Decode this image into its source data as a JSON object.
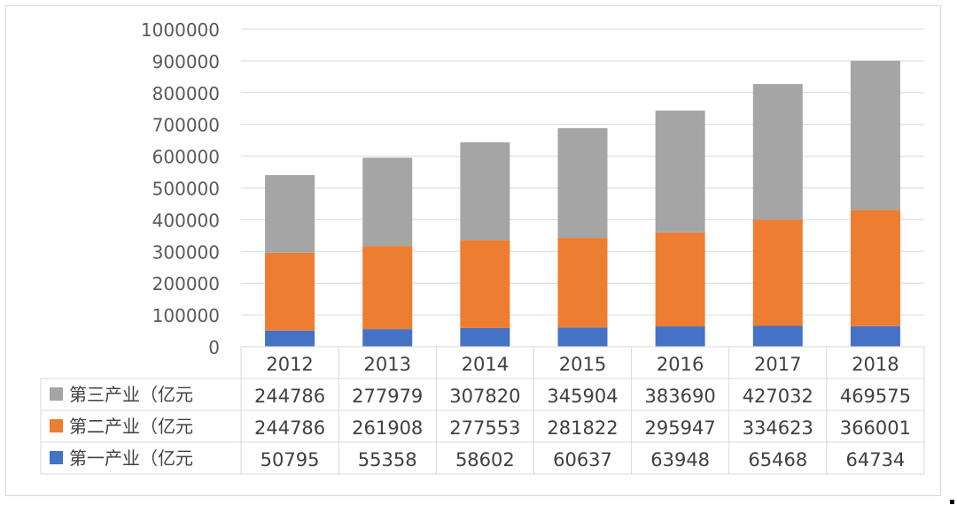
{
  "chart_data": {
    "type": "bar",
    "stacked": true,
    "categories": [
      "2012",
      "2013",
      "2014",
      "2015",
      "2016",
      "2017",
      "2018"
    ],
    "series": [
      {
        "name": "第一产业（亿元",
        "color": "#4472C4",
        "values": [
          50795,
          55358,
          58602,
          60637,
          63948,
          65468,
          64734
        ]
      },
      {
        "name": "第二产业（亿元",
        "color": "#ED7D31",
        "values": [
          244786,
          261908,
          277553,
          281822,
          295947,
          334623,
          366001
        ]
      },
      {
        "name": "第三产业（亿元",
        "color": "#A5A5A5",
        "values": [
          244786,
          277979,
          307820,
          345904,
          383690,
          427032,
          469575
        ]
      }
    ],
    "table_order": [
      "第三产业（亿元",
      "第二产业（亿元",
      "第一产业（亿元"
    ],
    "ylim": [
      0,
      1000000
    ],
    "yticks": [
      0,
      100000,
      200000,
      300000,
      400000,
      500000,
      600000,
      700000,
      800000,
      900000,
      1000000
    ],
    "grid": true,
    "legend": "data-table-below",
    "title": "",
    "xlabel": "",
    "ylabel": ""
  }
}
